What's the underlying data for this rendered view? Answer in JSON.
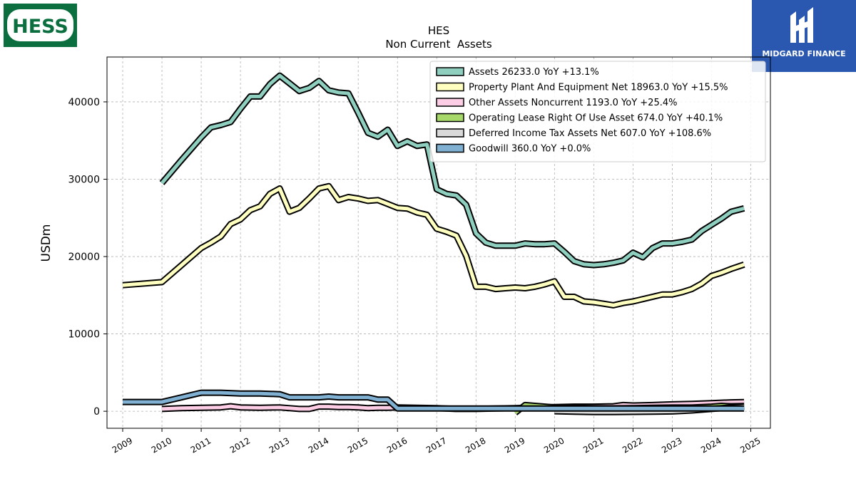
{
  "logos": {
    "left": {
      "text": "HESS",
      "color": "#0b6e3f"
    },
    "right": {
      "text": "MIDGARD FINANCE",
      "color": "#2a57b0"
    }
  },
  "chart_data": {
    "type": "line",
    "title": "HES",
    "subtitle": "Non Current  Assets",
    "ylabel": "USDm",
    "xlabel": "",
    "xlim": [
      2008.6,
      2025.5
    ],
    "ylim": [
      -2200,
      45800
    ],
    "x_ticks": [
      "2009",
      "2010",
      "2011",
      "2012",
      "2013",
      "2014",
      "2015",
      "2016",
      "2017",
      "2018",
      "2019",
      "2020",
      "2021",
      "2022",
      "2023",
      "2024",
      "2025"
    ],
    "y_ticks": [
      "0",
      "10000",
      "20000",
      "30000",
      "40000"
    ],
    "y_tick_values": [
      0,
      10000,
      20000,
      30000,
      40000
    ],
    "grid": true,
    "legend_position": "top-right",
    "series": [
      {
        "name": "Assets",
        "legend": "Assets  26233.0 YoY +13.1%",
        "color": "#8ecfbf",
        "points": [
          [
            2010.0,
            29500
          ],
          [
            2010.5,
            32500
          ],
          [
            2011.0,
            35400
          ],
          [
            2011.25,
            36700
          ],
          [
            2011.5,
            37000
          ],
          [
            2011.75,
            37400
          ],
          [
            2012.0,
            39100
          ],
          [
            2012.25,
            40700
          ],
          [
            2012.5,
            40700
          ],
          [
            2012.75,
            42300
          ],
          [
            2013.0,
            43400
          ],
          [
            2013.25,
            42400
          ],
          [
            2013.5,
            41400
          ],
          [
            2013.75,
            41800
          ],
          [
            2014.0,
            42700
          ],
          [
            2014.25,
            41500
          ],
          [
            2014.5,
            41200
          ],
          [
            2014.75,
            41100
          ],
          [
            2015.0,
            38600
          ],
          [
            2015.25,
            36000
          ],
          [
            2015.5,
            35500
          ],
          [
            2015.75,
            36400
          ],
          [
            2016.0,
            34300
          ],
          [
            2016.25,
            34900
          ],
          [
            2016.5,
            34300
          ],
          [
            2016.75,
            34500
          ],
          [
            2017.0,
            28700
          ],
          [
            2017.25,
            28100
          ],
          [
            2017.5,
            27900
          ],
          [
            2017.75,
            26700
          ],
          [
            2018.0,
            23000
          ],
          [
            2018.25,
            21800
          ],
          [
            2018.5,
            21400
          ],
          [
            2018.75,
            21400
          ],
          [
            2019.0,
            21400
          ],
          [
            2019.25,
            21700
          ],
          [
            2019.5,
            21600
          ],
          [
            2019.75,
            21600
          ],
          [
            2020.0,
            21700
          ],
          [
            2020.25,
            20600
          ],
          [
            2020.5,
            19400
          ],
          [
            2020.75,
            19000
          ],
          [
            2021.0,
            18900
          ],
          [
            2021.25,
            19000
          ],
          [
            2021.5,
            19200
          ],
          [
            2021.75,
            19500
          ],
          [
            2022.0,
            20500
          ],
          [
            2022.25,
            19900
          ],
          [
            2022.5,
            21100
          ],
          [
            2022.75,
            21700
          ],
          [
            2023.0,
            21700
          ],
          [
            2023.25,
            21900
          ],
          [
            2023.5,
            22200
          ],
          [
            2023.75,
            23300
          ],
          [
            2024.0,
            24100
          ],
          [
            2024.25,
            24900
          ],
          [
            2024.5,
            25800
          ],
          [
            2024.83,
            26233
          ]
        ]
      },
      {
        "name": "Property Plant And Equipment Net",
        "legend": "Property Plant And Equipment Net  18963.0 YoY +15.5%",
        "color": "#ffffbf",
        "points": [
          [
            2009.0,
            16300
          ],
          [
            2010.0,
            16700
          ],
          [
            2010.5,
            18900
          ],
          [
            2011.0,
            21100
          ],
          [
            2011.25,
            21800
          ],
          [
            2011.5,
            22600
          ],
          [
            2011.75,
            24200
          ],
          [
            2012.0,
            24800
          ],
          [
            2012.25,
            26000
          ],
          [
            2012.5,
            26500
          ],
          [
            2012.75,
            28100
          ],
          [
            2013.0,
            28800
          ],
          [
            2013.25,
            25800
          ],
          [
            2013.5,
            26300
          ],
          [
            2013.75,
            27500
          ],
          [
            2014.0,
            28800
          ],
          [
            2014.25,
            29100
          ],
          [
            2014.5,
            27300
          ],
          [
            2014.75,
            27700
          ],
          [
            2015.0,
            27500
          ],
          [
            2015.25,
            27200
          ],
          [
            2015.5,
            27300
          ],
          [
            2015.75,
            26800
          ],
          [
            2016.0,
            26300
          ],
          [
            2016.25,
            26200
          ],
          [
            2016.5,
            25700
          ],
          [
            2016.75,
            25400
          ],
          [
            2017.0,
            23600
          ],
          [
            2017.25,
            23200
          ],
          [
            2017.5,
            22700
          ],
          [
            2017.75,
            20100
          ],
          [
            2018.0,
            16100
          ],
          [
            2018.25,
            16100
          ],
          [
            2018.5,
            15800
          ],
          [
            2018.75,
            15900
          ],
          [
            2019.0,
            16000
          ],
          [
            2019.25,
            15900
          ],
          [
            2019.5,
            16100
          ],
          [
            2019.75,
            16400
          ],
          [
            2020.0,
            16800
          ],
          [
            2020.25,
            14800
          ],
          [
            2020.5,
            14800
          ],
          [
            2020.75,
            14200
          ],
          [
            2021.0,
            14100
          ],
          [
            2021.25,
            13900
          ],
          [
            2021.5,
            13700
          ],
          [
            2021.75,
            14000
          ],
          [
            2022.0,
            14200
          ],
          [
            2022.25,
            14500
          ],
          [
            2022.5,
            14800
          ],
          [
            2022.75,
            15100
          ],
          [
            2023.0,
            15100
          ],
          [
            2023.25,
            15400
          ],
          [
            2023.5,
            15800
          ],
          [
            2023.75,
            16500
          ],
          [
            2024.0,
            17500
          ],
          [
            2024.25,
            17900
          ],
          [
            2024.5,
            18400
          ],
          [
            2024.83,
            18963
          ]
        ]
      },
      {
        "name": "Other Assets Noncurrent",
        "legend": "Other Assets Noncurrent  1193.0 YoY +25.4%",
        "color": "#fccde5",
        "points": [
          [
            2010.0,
            300
          ],
          [
            2010.5,
            400
          ],
          [
            2011.0,
            450
          ],
          [
            2011.5,
            500
          ],
          [
            2011.75,
            650
          ],
          [
            2012.0,
            500
          ],
          [
            2012.5,
            450
          ],
          [
            2013.0,
            500
          ],
          [
            2013.25,
            400
          ],
          [
            2013.5,
            300
          ],
          [
            2013.75,
            300
          ],
          [
            2014.0,
            600
          ],
          [
            2014.25,
            600
          ],
          [
            2014.5,
            550
          ],
          [
            2014.75,
            550
          ],
          [
            2015.0,
            500
          ],
          [
            2015.25,
            400
          ],
          [
            2015.5,
            450
          ],
          [
            2015.75,
            450
          ],
          [
            2016.0,
            500
          ],
          [
            2016.5,
            450
          ],
          [
            2017.0,
            400
          ],
          [
            2017.5,
            300
          ],
          [
            2018.0,
            300
          ],
          [
            2018.5,
            350
          ],
          [
            2019.0,
            400
          ],
          [
            2019.5,
            500
          ],
          [
            2020.0,
            550
          ],
          [
            2020.5,
            600
          ],
          [
            2021.0,
            600
          ],
          [
            2021.5,
            650
          ],
          [
            2021.75,
            800
          ],
          [
            2022.0,
            750
          ],
          [
            2022.5,
            800
          ],
          [
            2023.0,
            900
          ],
          [
            2023.5,
            950
          ],
          [
            2024.0,
            1050
          ],
          [
            2024.5,
            1150
          ],
          [
            2024.83,
            1193
          ]
        ]
      },
      {
        "name": "Operating Lease Right Of Use Asset",
        "legend": "Operating Lease Right Of Use Asset  674.0 YoY +40.1%",
        "color": "#a6d96a",
        "points": [
          [
            2019.0,
            -200
          ],
          [
            2019.25,
            800
          ],
          [
            2019.5,
            700
          ],
          [
            2019.75,
            600
          ],
          [
            2020.0,
            500
          ],
          [
            2020.5,
            450
          ],
          [
            2021.0,
            400
          ],
          [
            2021.5,
            380
          ],
          [
            2022.0,
            400
          ],
          [
            2022.5,
            450
          ],
          [
            2023.0,
            480
          ],
          [
            2023.5,
            480
          ],
          [
            2024.0,
            600
          ],
          [
            2024.25,
            700
          ],
          [
            2024.5,
            650
          ],
          [
            2024.83,
            674
          ]
        ]
      },
      {
        "name": "Deferred Income Tax Assets Net",
        "legend": "Deferred Income Tax Assets Net  607.0 YoY +108.6%",
        "color": "#d9d9d9",
        "points": [
          [
            2020.0,
            0
          ],
          [
            2020.5,
            -50
          ],
          [
            2021.0,
            -100
          ],
          [
            2021.5,
            -100
          ],
          [
            2022.0,
            -80
          ],
          [
            2022.5,
            -50
          ],
          [
            2023.0,
            -30
          ],
          [
            2023.5,
            100
          ],
          [
            2024.0,
            300
          ],
          [
            2024.5,
            500
          ],
          [
            2024.83,
            607
          ]
        ]
      },
      {
        "name": "Goodwill",
        "legend": "Goodwill  360.0 YoY +0.0%",
        "color": "#80b1d3",
        "points": [
          [
            2009.0,
            1200
          ],
          [
            2010.0,
            1200
          ],
          [
            2010.5,
            1800
          ],
          [
            2011.0,
            2400
          ],
          [
            2011.5,
            2400
          ],
          [
            2012.0,
            2300
          ],
          [
            2012.5,
            2300
          ],
          [
            2013.0,
            2200
          ],
          [
            2013.25,
            1800
          ],
          [
            2013.5,
            1800
          ],
          [
            2014.0,
            1800
          ],
          [
            2014.25,
            1900
          ],
          [
            2014.5,
            1800
          ],
          [
            2015.0,
            1800
          ],
          [
            2015.25,
            1800
          ],
          [
            2015.5,
            1500
          ],
          [
            2015.75,
            1500
          ],
          [
            2016.0,
            360
          ],
          [
            2016.5,
            360
          ],
          [
            2017.0,
            360
          ],
          [
            2018.0,
            360
          ],
          [
            2019.0,
            360
          ],
          [
            2020.0,
            360
          ],
          [
            2021.0,
            360
          ],
          [
            2022.0,
            360
          ],
          [
            2023.0,
            360
          ],
          [
            2024.0,
            360
          ],
          [
            2024.83,
            360
          ]
        ]
      }
    ]
  }
}
